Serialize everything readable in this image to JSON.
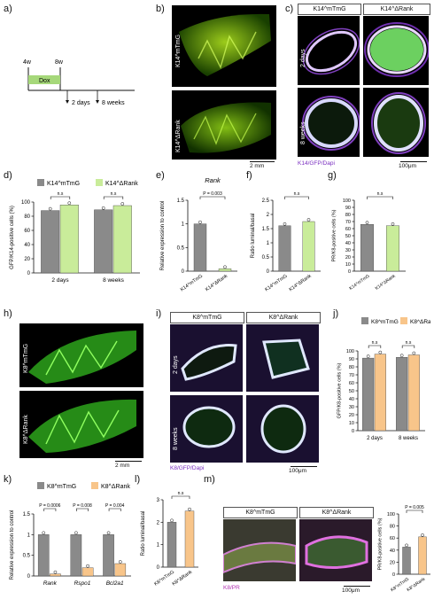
{
  "panels": {
    "a": {
      "label": "a)",
      "t1": "4w",
      "t2": "8w",
      "dox": "Dox",
      "e1": "2 days",
      "e2": "8 weeks"
    },
    "b": {
      "label": "b)",
      "top": "K14^mTmG",
      "bottom": "K14^ΔRank",
      "scale": "2 mm"
    },
    "c": {
      "label": "c)",
      "col1": "K14^mTmG",
      "col2": "K14^ΔRank",
      "row1": "2 days",
      "row2": "8 weeks",
      "stain": "K14/GFP/Dapi",
      "scale": "100μm"
    },
    "d": {
      "label": "d)"
    },
    "e": {
      "label": "e)"
    },
    "f": {
      "label": "f)"
    },
    "g": {
      "label": "g)"
    },
    "h": {
      "label": "h)",
      "top": "K8^mTmG",
      "bottom": "K8^ΔRank",
      "scale": "2 mm"
    },
    "i": {
      "label": "i)",
      "col1": "K8^mTmG",
      "col2": "K8^ΔRank",
      "row1": "2 days",
      "row2": "8 weeks",
      "stain": "K8/GFP/Dapi",
      "scale": "100μm"
    },
    "j": {
      "label": "j)"
    },
    "k": {
      "label": "k)"
    },
    "l": {
      "label": "l)"
    },
    "m": {
      "label": "m)",
      "col1": "K8^mTmG",
      "col2": "K8^ΔRank",
      "stain": "K8/PR",
      "scale": "100μm"
    }
  },
  "colors": {
    "mTmG": "#8a8a8a",
    "dRank14": "#c9ec9a",
    "dRank8": "#f8c58a"
  },
  "chart_data": [
    {
      "id": "d",
      "type": "bar",
      "legend": [
        "K14^mTmG",
        "K14^ΔRank"
      ],
      "categories": [
        "2 days",
        "8 weeks"
      ],
      "series": [
        {
          "name": "K14^mTmG",
          "values": [
            88,
            89
          ]
        },
        {
          "name": "K14^ΔRank",
          "values": [
            96,
            95
          ]
        }
      ],
      "ylabel": "GFP/K14-positive cells (%)",
      "ylim": [
        0,
        100
      ],
      "yticks": [
        0,
        20,
        40,
        60,
        80,
        100
      ],
      "annot": [
        "n.s",
        "n.s"
      ]
    },
    {
      "id": "e",
      "type": "bar",
      "title": "Rank",
      "categories": [
        "K14^mTmG",
        "K14^ΔRank"
      ],
      "values": [
        1.0,
        0.05
      ],
      "ylabel": "Relative expression to control",
      "ylim": [
        0,
        1.5
      ],
      "yticks": [
        0.0,
        0.5,
        1.0,
        1.5
      ],
      "annot": [
        "P = 0.003"
      ]
    },
    {
      "id": "f",
      "type": "bar",
      "categories": [
        "K14^mTmG",
        "K14^ΔRank"
      ],
      "values": [
        1.6,
        1.75
      ],
      "ylabel": "Ratio luminal/basal",
      "ylim": [
        0,
        2.5
      ],
      "yticks": [
        0.0,
        0.5,
        1.0,
        1.5,
        2.0,
        2.5
      ],
      "annot": [
        "n.s"
      ]
    },
    {
      "id": "g",
      "type": "bar",
      "categories": [
        "K14^mTmG",
        "K14^ΔRank"
      ],
      "values": [
        66,
        64
      ],
      "ylabel": "PR/K8-positive cells (%)",
      "ylim": [
        0,
        100
      ],
      "yticks": [
        0,
        10,
        20,
        30,
        40,
        50,
        60,
        70,
        80,
        90,
        100
      ],
      "annot": [
        "n.s"
      ]
    },
    {
      "id": "j",
      "type": "bar",
      "legend": [
        "K8^mTmG",
        "K8^ΔRank"
      ],
      "categories": [
        "2 days",
        "8 weeks"
      ],
      "series": [
        {
          "name": "K8^mTmG",
          "values": [
            91,
            92
          ]
        },
        {
          "name": "K8^ΔRank",
          "values": [
            96,
            95
          ]
        }
      ],
      "ylabel": "GFP/K8-positive cells (%)",
      "ylim": [
        0,
        100
      ],
      "yticks": [
        0,
        10,
        20,
        30,
        40,
        50,
        60,
        70,
        80,
        90,
        100
      ],
      "annot": [
        "n.s",
        "n.s"
      ]
    },
    {
      "id": "k",
      "type": "bar",
      "legend": [
        "K8^mTmG",
        "K8^ΔRank"
      ],
      "categories": [
        "Rank",
        "Rspo1",
        "Bcl2a1"
      ],
      "series": [
        {
          "name": "K8^mTmG",
          "values": [
            1.0,
            1.0,
            1.0
          ]
        },
        {
          "name": "K8^ΔRank",
          "values": [
            0.05,
            0.2,
            0.3
          ]
        }
      ],
      "ylabel": "Relative expression to control",
      "ylim": [
        0,
        1.5
      ],
      "yticks": [
        0.0,
        0.5,
        1.0,
        1.5
      ],
      "annot": [
        "P = 0.0006",
        "P = 0.008",
        "P = 0.004"
      ]
    },
    {
      "id": "l",
      "type": "bar",
      "categories": [
        "K8^mTmG",
        "K8^ΔRank"
      ],
      "values": [
        2.0,
        2.5
      ],
      "ylabel": "Ratio luminal/basal",
      "ylim": [
        0,
        3
      ],
      "yticks": [
        0,
        1,
        2,
        3
      ],
      "annot": [
        "n.s"
      ]
    },
    {
      "id": "m",
      "type": "bar",
      "categories": [
        "K8^mTmG",
        "K8^ΔRank"
      ],
      "values": [
        45,
        62
      ],
      "ylabel": "PR/K8-positive cells (%)",
      "ylim": [
        0,
        100
      ],
      "yticks": [
        0,
        20,
        40,
        60,
        80,
        100
      ],
      "annot": [
        "P = 0.005"
      ]
    }
  ]
}
